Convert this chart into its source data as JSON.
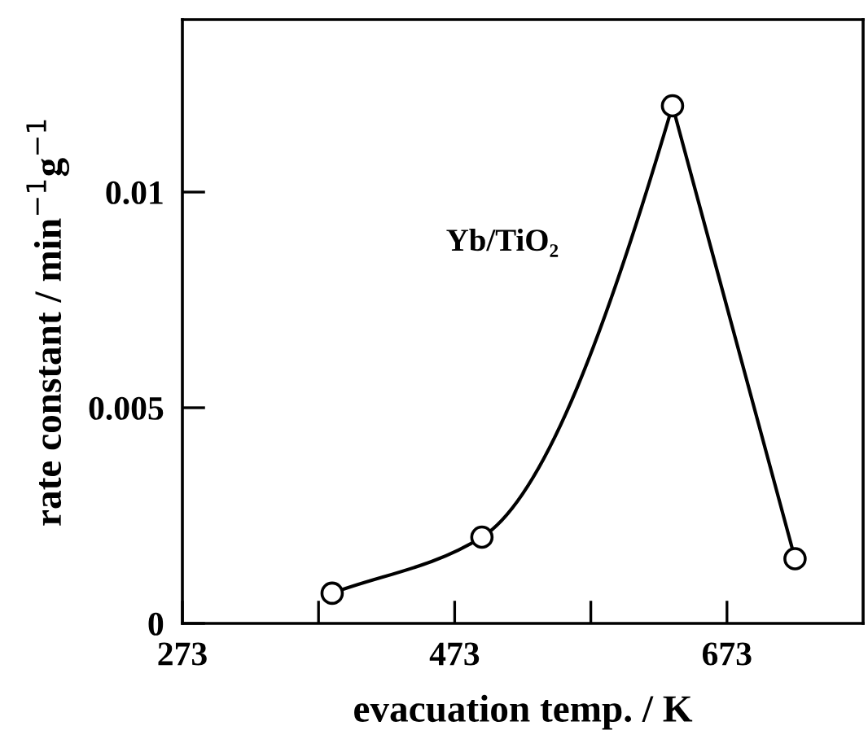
{
  "chart_data": {
    "type": "line",
    "xlabel": "evacuation temp. / K",
    "ylabel": "rate constant / min$^{−1}$g$^{−1}$",
    "annotations": [
      "Yb/TiO₂"
    ],
    "x": [
      383,
      493,
      633,
      723
    ],
    "series": [
      {
        "color": "#000000",
        "values": [
          0.0007,
          0.002,
          0.012,
          0.0015
        ]
      }
    ],
    "xlim": [
      273,
      773
    ],
    "xticks": [
      273,
      {
        "value": 373,
        "label": null
      },
      473,
      {
        "value": 573,
        "label": null
      },
      673
    ],
    "ylim": [
      0,
      0.014
    ],
    "yticks": [
      0,
      0.005,
      0.01
    ],
    "marker": "circle",
    "line_style": "solid",
    "grid": false,
    "legend": false
  }
}
